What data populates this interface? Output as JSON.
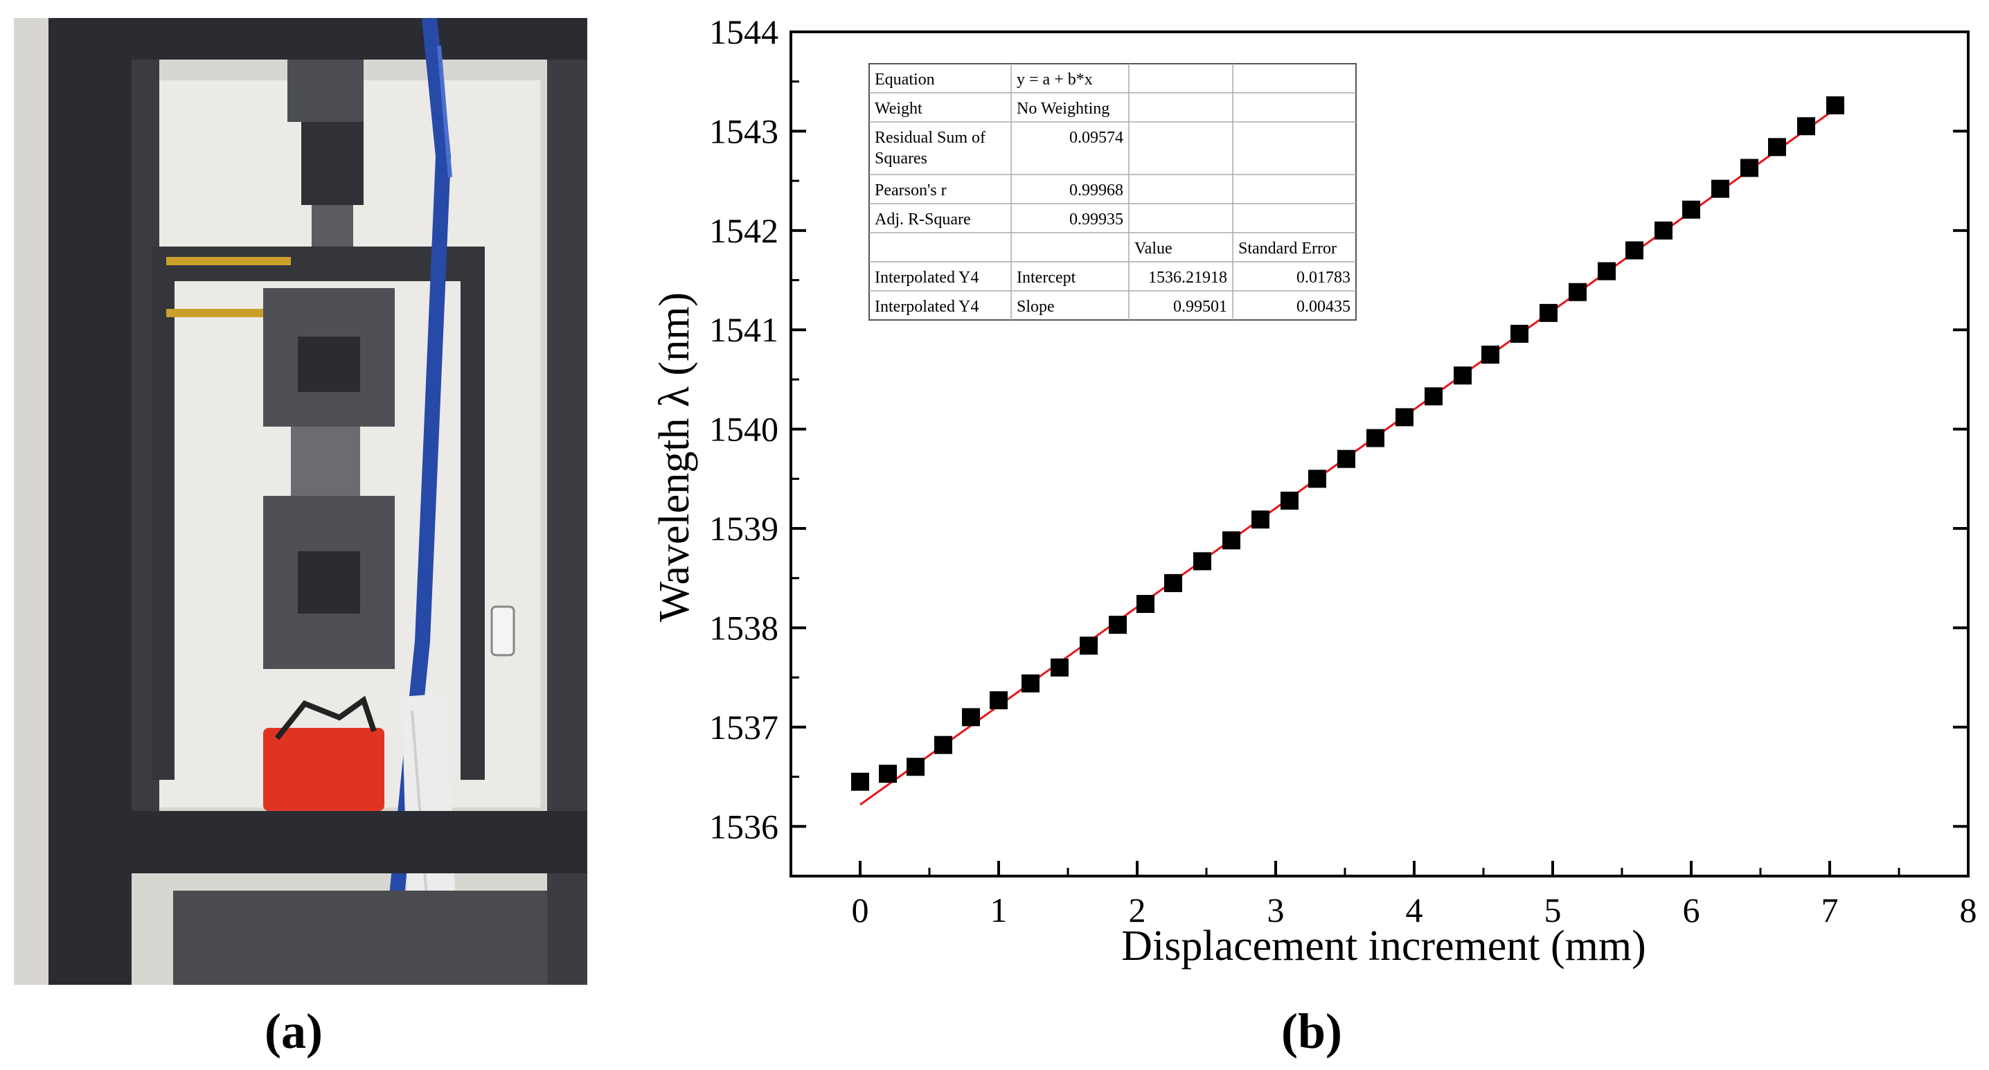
{
  "panels": {
    "a_label": "a",
    "b_label": "b"
  },
  "photo": {
    "description_icon": "tensile-test-machine-photo",
    "colors": {
      "frame": "#2b2d33",
      "background": "#d9d6cf",
      "blue_fiber": "#2749a8",
      "red_container": "#e03423",
      "bag": "#e8e8e8"
    }
  },
  "chart_data": {
    "type": "scatter",
    "xlabel": "Displacement increment (mm)",
    "ylabel": "Wavelength λ (nm)",
    "xlim": [
      -0.5,
      8
    ],
    "ylim": [
      1535.5,
      1544
    ],
    "xticks": [
      0,
      1,
      2,
      3,
      4,
      5,
      6,
      7,
      8
    ],
    "yticks": [
      1536,
      1537,
      1538,
      1539,
      1540,
      1541,
      1542,
      1543,
      1544
    ],
    "grid": false,
    "series": [
      {
        "marker": "square",
        "color": "#000000",
        "x": [
          0,
          0.2,
          0.4,
          0.6,
          0.8,
          1.0,
          1.23,
          1.44,
          1.65,
          1.86,
          2.06,
          2.26,
          2.47,
          2.68,
          2.89,
          3.1,
          3.3,
          3.51,
          3.72,
          3.93,
          4.14,
          4.35,
          4.55,
          4.76,
          4.97,
          5.18,
          5.39,
          5.59,
          5.8,
          6.0,
          6.21,
          6.42,
          6.62,
          6.83,
          7.04
        ],
        "y": [
          1536.45,
          1536.53,
          1536.6,
          1536.82,
          1537.1,
          1537.27,
          1537.44,
          1537.6,
          1537.82,
          1538.03,
          1538.24,
          1538.45,
          1538.67,
          1538.88,
          1539.09,
          1539.28,
          1539.5,
          1539.7,
          1539.91,
          1540.12,
          1540.33,
          1540.54,
          1540.75,
          1540.96,
          1541.17,
          1541.38,
          1541.59,
          1541.8,
          1542.0,
          1542.21,
          1542.42,
          1542.63,
          1542.84,
          1543.05,
          1543.26
        ]
      }
    ],
    "fit": {
      "intercept": 1536.21918,
      "slope": 0.99501,
      "x_range": [
        0,
        7.04
      ],
      "color": "#e8161b"
    },
    "fit_table": {
      "rows": [
        [
          "Equation",
          "y = a + b*x",
          "",
          ""
        ],
        [
          "Weight",
          "No Weighting",
          "",
          ""
        ],
        [
          "Residual Sum of Squares",
          "0.09574",
          "",
          ""
        ],
        [
          "Pearson's r",
          "0.99968",
          "",
          ""
        ],
        [
          "Adj. R-Square",
          "0.99935",
          "",
          ""
        ],
        [
          "",
          "",
          "Value",
          "Standard Error"
        ],
        [
          "Interpolated Y4",
          "Intercept",
          "1536.21918",
          "0.01783"
        ],
        [
          "Interpolated Y4",
          "Slope",
          "0.99501",
          "0.00435"
        ]
      ]
    }
  }
}
